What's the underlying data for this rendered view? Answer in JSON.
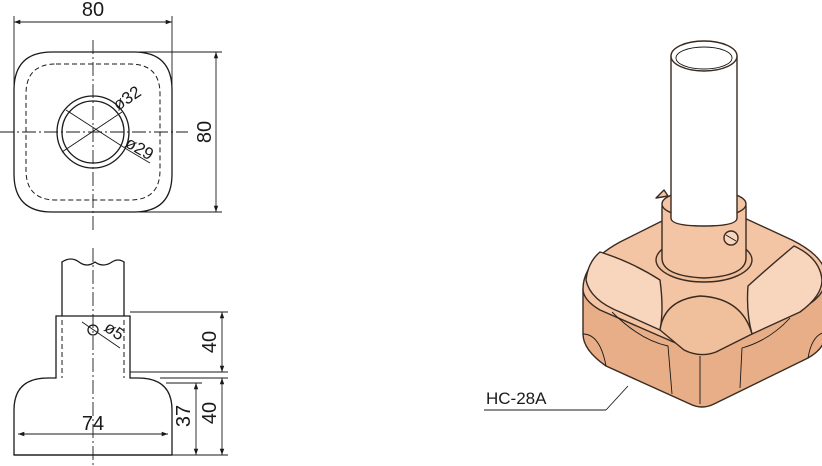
{
  "colors": {
    "line": "#1a1a1a",
    "base_fill": "#f3c5a4",
    "base_shade": "#e7ae87",
    "base_light": "#f8d6bd",
    "tube_fill": "#ffffff",
    "outline": "#3a2a20"
  },
  "top_view": {
    "width_dim": "80",
    "height_dim": "80",
    "outer_dia": "ø32",
    "inner_dia": "ø29"
  },
  "side_view": {
    "hole_dia": "ø5",
    "sleeve_height": "40",
    "base_width": "74",
    "base_height": "37",
    "base_overall": "40"
  },
  "product": {
    "model_label": "HC-28A"
  }
}
